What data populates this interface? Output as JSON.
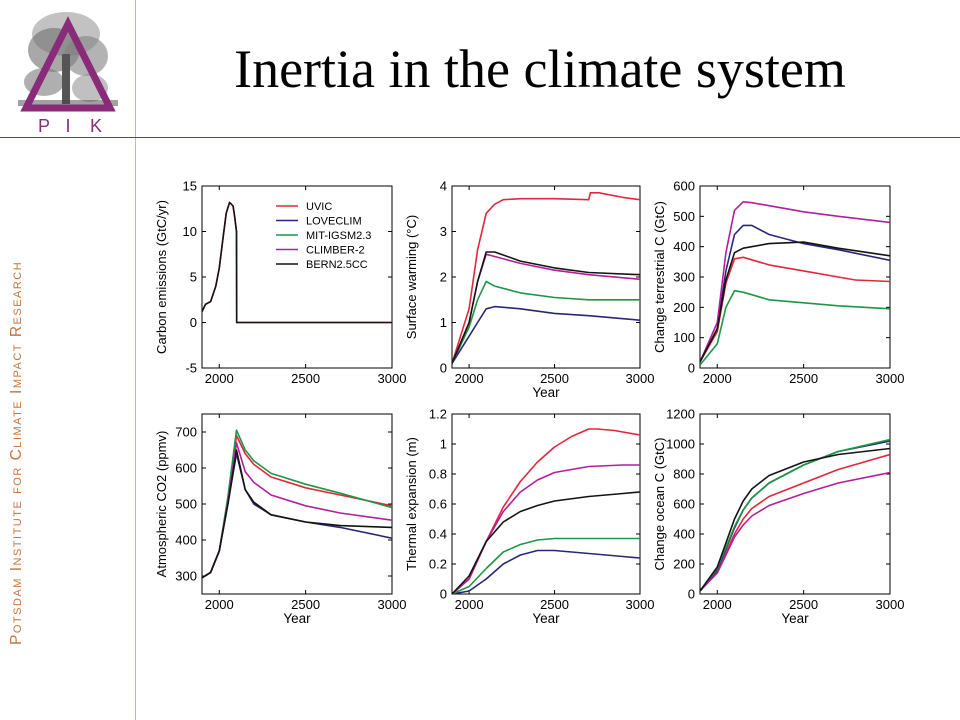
{
  "slide": {
    "title": "Inertia in the climate system",
    "side_text": "Potsdam Institute for Climate Impact Research",
    "logo_letters": [
      "P",
      "I",
      "K"
    ]
  },
  "colors": {
    "accent_purple": "#8a2b7a",
    "side_text": "#c8743a",
    "divider": "#d6b98a",
    "UVIC": "#e0283c",
    "LOVECLIM": "#282878",
    "MIT-IGSM2.3": "#1e9646",
    "CLIMBER-2": "#b41e9b",
    "BERN2.5CC": "#141414"
  },
  "chart_data": [
    {
      "type": "line",
      "panel": "carbon-emissions",
      "ylabel": "Carbon emissions (GtC/yr)",
      "xlabel": "",
      "xlim": [
        1900,
        3000
      ],
      "ylim": [
        -5,
        15
      ],
      "xticks": [
        2000,
        2500,
        3000
      ],
      "yticks": [
        -5,
        0,
        5,
        10,
        15
      ],
      "legend": {
        "placement": "top-right",
        "entries": [
          "UVIC",
          "LOVECLIM",
          "MIT-IGSM2.3",
          "CLIMBER-2",
          "BERN2.5CC"
        ]
      },
      "series": [
        {
          "name": "UVIC",
          "x": [
            1900,
            1920,
            1950,
            1980,
            2000,
            2020,
            2040,
            2060,
            2080,
            2090,
            2100,
            2101,
            2150,
            2500,
            3000
          ],
          "y": [
            1.2,
            2,
            2.3,
            4,
            6,
            9,
            12,
            13.2,
            12.8,
            11.5,
            10,
            0,
            0,
            0,
            0
          ]
        },
        {
          "name": "BERN2.5CC",
          "x": [
            1900,
            1920,
            1950,
            1980,
            2000,
            2020,
            2040,
            2060,
            2080,
            2090,
            2100,
            2101,
            2150,
            2500,
            3000
          ],
          "y": [
            1.2,
            2,
            2.3,
            4,
            6,
            9,
            12,
            13.2,
            12.8,
            11.5,
            10,
            0,
            0,
            0,
            0
          ]
        }
      ]
    },
    {
      "type": "line",
      "panel": "surface-warming",
      "ylabel": "Surface warming (°C)",
      "xlabel": "Year",
      "xlim": [
        1900,
        3000
      ],
      "ylim": [
        0,
        4
      ],
      "xticks": [
        2000,
        2500,
        3000
      ],
      "yticks": [
        0,
        1,
        2,
        3,
        4
      ],
      "series": [
        {
          "name": "UVIC",
          "x": [
            1900,
            2000,
            2050,
            2100,
            2150,
            2200,
            2300,
            2500,
            2700,
            2710,
            2760,
            2900,
            3000
          ],
          "y": [
            0.1,
            1.3,
            2.6,
            3.4,
            3.6,
            3.7,
            3.72,
            3.72,
            3.7,
            3.85,
            3.85,
            3.75,
            3.7
          ]
        },
        {
          "name": "LOVECLIM",
          "x": [
            1900,
            2000,
            2050,
            2100,
            2150,
            2300,
            2500,
            2700,
            3000
          ],
          "y": [
            0.1,
            0.7,
            1.0,
            1.3,
            1.35,
            1.3,
            1.2,
            1.15,
            1.05
          ]
        },
        {
          "name": "MIT-IGSM2.3",
          "x": [
            1900,
            2000,
            2050,
            2100,
            2150,
            2300,
            2500,
            2700,
            3000
          ],
          "y": [
            0.1,
            0.9,
            1.5,
            1.9,
            1.8,
            1.65,
            1.55,
            1.5,
            1.5
          ]
        },
        {
          "name": "CLIMBER-2",
          "x": [
            1900,
            2000,
            2050,
            2100,
            2150,
            2300,
            2500,
            2700,
            3000
          ],
          "y": [
            0.1,
            1.0,
            1.9,
            2.5,
            2.45,
            2.3,
            2.15,
            2.05,
            1.95
          ]
        },
        {
          "name": "BERN2.5CC",
          "x": [
            1900,
            2000,
            2050,
            2100,
            2150,
            2300,
            2500,
            2700,
            3000
          ],
          "y": [
            0.1,
            1.0,
            1.9,
            2.55,
            2.55,
            2.35,
            2.2,
            2.1,
            2.05
          ]
        }
      ]
    },
    {
      "type": "line",
      "panel": "terrestrial-carbon",
      "ylabel": "Change terrestrial C (GtC)",
      "xlabel": "",
      "xlim": [
        1900,
        3000
      ],
      "ylim": [
        0,
        600
      ],
      "xticks": [
        2000,
        2500,
        3000
      ],
      "yticks": [
        0,
        100,
        200,
        300,
        400,
        500,
        600
      ],
      "series": [
        {
          "name": "UVIC",
          "x": [
            1900,
            2000,
            2050,
            2100,
            2150,
            2300,
            2500,
            2700,
            2800,
            3000
          ],
          "y": [
            20,
            120,
            280,
            360,
            365,
            340,
            320,
            300,
            290,
            285
          ]
        },
        {
          "name": "LOVECLIM",
          "x": [
            1900,
            2000,
            2050,
            2100,
            2150,
            2200,
            2300,
            2500,
            2700,
            3000
          ],
          "y": [
            20,
            130,
            320,
            440,
            470,
            470,
            440,
            410,
            390,
            355
          ]
        },
        {
          "name": "MIT-IGSM2.3",
          "x": [
            1900,
            2000,
            2050,
            2100,
            2150,
            2300,
            2500,
            2700,
            3000
          ],
          "y": [
            10,
            80,
            200,
            255,
            250,
            225,
            215,
            205,
            195
          ]
        },
        {
          "name": "CLIMBER-2",
          "x": [
            1900,
            2000,
            2050,
            2100,
            2150,
            2200,
            2300,
            2500,
            2700,
            3000
          ],
          "y": [
            20,
            150,
            380,
            520,
            548,
            545,
            535,
            515,
            500,
            480
          ]
        },
        {
          "name": "BERN2.5CC",
          "x": [
            1900,
            2000,
            2050,
            2100,
            2150,
            2300,
            2500,
            2700,
            3000
          ],
          "y": [
            20,
            130,
            290,
            380,
            395,
            410,
            415,
            395,
            370
          ]
        }
      ]
    },
    {
      "type": "line",
      "panel": "atmospheric-co2",
      "ylabel": "Atmospheric CO2 (ppmv)",
      "xlabel": "Year",
      "xlim": [
        1900,
        3000
      ],
      "ylim": [
        250,
        750
      ],
      "xticks": [
        2000,
        2500,
        3000
      ],
      "yticks": [
        300,
        400,
        500,
        600,
        700
      ],
      "series": [
        {
          "name": "UVIC",
          "x": [
            1900,
            1950,
            2000,
            2050,
            2100,
            2150,
            2200,
            2300,
            2500,
            2700,
            3000
          ],
          "y": [
            295,
            310,
            370,
            510,
            690,
            640,
            610,
            575,
            545,
            525,
            495
          ]
        },
        {
          "name": "LOVECLIM",
          "x": [
            1900,
            1950,
            2000,
            2050,
            2100,
            2150,
            2200,
            2300,
            2500,
            2700,
            3000
          ],
          "y": [
            295,
            310,
            370,
            500,
            640,
            540,
            500,
            470,
            450,
            435,
            405
          ]
        },
        {
          "name": "MIT-IGSM2.3",
          "x": [
            1900,
            1950,
            2000,
            2050,
            2100,
            2150,
            2200,
            2300,
            2500,
            2700,
            3000
          ],
          "y": [
            295,
            310,
            370,
            520,
            705,
            650,
            620,
            585,
            555,
            530,
            490
          ]
        },
        {
          "name": "CLIMBER-2",
          "x": [
            1900,
            1950,
            2000,
            2050,
            2100,
            2150,
            2200,
            2300,
            2500,
            2700,
            3000
          ],
          "y": [
            295,
            310,
            370,
            505,
            670,
            590,
            560,
            525,
            495,
            475,
            455
          ]
        },
        {
          "name": "BERN2.5CC",
          "x": [
            1900,
            1950,
            2000,
            2050,
            2100,
            2150,
            2200,
            2300,
            2500,
            2700,
            3000
          ],
          "y": [
            295,
            310,
            370,
            500,
            650,
            540,
            505,
            470,
            450,
            440,
            435
          ]
        }
      ]
    },
    {
      "type": "line",
      "panel": "thermal-expansion",
      "ylabel": "Thermal expansion (m)",
      "xlabel": "Year",
      "xlim": [
        1900,
        3000
      ],
      "ylim": [
        0,
        1.2
      ],
      "xticks": [
        2000,
        2500,
        3000
      ],
      "yticks": [
        0,
        0.2,
        0.4,
        0.6,
        0.8,
        1,
        1.2
      ],
      "series": [
        {
          "name": "UVIC",
          "x": [
            1900,
            2000,
            2100,
            2200,
            2300,
            2400,
            2500,
            2600,
            2700,
            2750,
            2850,
            3000
          ],
          "y": [
            0,
            0.1,
            0.35,
            0.58,
            0.75,
            0.88,
            0.98,
            1.05,
            1.1,
            1.1,
            1.09,
            1.06
          ]
        },
        {
          "name": "LOVECLIM",
          "x": [
            1900,
            2000,
            2100,
            2200,
            2300,
            2400,
            2500,
            2700,
            2900,
            3000
          ],
          "y": [
            0,
            0.02,
            0.1,
            0.2,
            0.26,
            0.29,
            0.29,
            0.27,
            0.25,
            0.24
          ]
        },
        {
          "name": "MIT-IGSM2.3",
          "x": [
            1900,
            2000,
            2100,
            2200,
            2300,
            2400,
            2500,
            2700,
            2900,
            3000
          ],
          "y": [
            0,
            0.05,
            0.17,
            0.28,
            0.33,
            0.36,
            0.37,
            0.37,
            0.37,
            0.37
          ]
        },
        {
          "name": "CLIMBER-2",
          "x": [
            1900,
            2000,
            2100,
            2200,
            2300,
            2400,
            2500,
            2700,
            2900,
            3000
          ],
          "y": [
            0,
            0.1,
            0.35,
            0.55,
            0.68,
            0.76,
            0.81,
            0.85,
            0.86,
            0.86
          ]
        },
        {
          "name": "BERN2.5CC",
          "x": [
            1900,
            2000,
            2100,
            2200,
            2300,
            2400,
            2500,
            2700,
            2900,
            3000
          ],
          "y": [
            0,
            0.12,
            0.35,
            0.48,
            0.55,
            0.59,
            0.62,
            0.65,
            0.67,
            0.68
          ]
        }
      ]
    },
    {
      "type": "line",
      "panel": "ocean-carbon",
      "ylabel": "Change ocean C (GtC)",
      "xlabel": "Year",
      "xlim": [
        1900,
        3000
      ],
      "ylim": [
        0,
        1200
      ],
      "xticks": [
        2000,
        2500,
        3000
      ],
      "yticks": [
        0,
        200,
        400,
        600,
        800,
        1000,
        1200
      ],
      "series": [
        {
          "name": "UVIC",
          "x": [
            1900,
            2000,
            2100,
            2150,
            2200,
            2300,
            2500,
            2700,
            3000
          ],
          "y": [
            20,
            150,
            400,
            500,
            570,
            650,
            740,
            830,
            930
          ]
        },
        {
          "name": "LOVECLIM",
          "x": [
            1900,
            2000,
            2100,
            2150,
            2200,
            2300,
            2500,
            2700,
            3000
          ],
          "y": [
            20,
            160,
            440,
            560,
            640,
            740,
            860,
            950,
            1020
          ]
        },
        {
          "name": "MIT-IGSM2.3",
          "x": [
            1900,
            2000,
            2100,
            2150,
            2200,
            2300,
            2500,
            2700,
            3000
          ],
          "y": [
            20,
            170,
            450,
            560,
            640,
            740,
            860,
            950,
            1030
          ]
        },
        {
          "name": "CLIMBER-2",
          "x": [
            1900,
            2000,
            2100,
            2150,
            2200,
            2300,
            2500,
            2700,
            3000
          ],
          "y": [
            20,
            140,
            380,
            460,
            520,
            590,
            670,
            740,
            810
          ]
        },
        {
          "name": "BERN2.5CC",
          "x": [
            1900,
            2000,
            2100,
            2150,
            2200,
            2300,
            2500,
            2700,
            3000
          ],
          "y": [
            20,
            180,
            500,
            620,
            700,
            790,
            880,
            930,
            970
          ]
        }
      ]
    }
  ]
}
